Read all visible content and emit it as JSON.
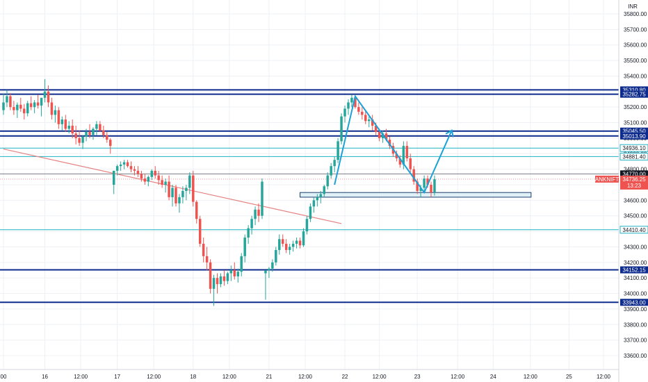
{
  "currency": "INR",
  "colors": {
    "up": "#26a69a",
    "down": "#ef5350",
    "navy": "#0d2b8c",
    "teal": "#1fb2c4",
    "trend_red": "#e58080",
    "arrow": "#1ba1d6",
    "grid": "#eef0f4"
  },
  "chart_data": {
    "type": "candlestick",
    "symbol": "BANKNIFTY",
    "y_axis": {
      "min": 33500,
      "max": 35900,
      "ticks": [
        33600,
        33700,
        33800,
        33900,
        34000,
        34100,
        34200,
        34300,
        34400,
        34500,
        34600,
        34700,
        34800,
        34900,
        35000,
        35100,
        35200,
        35300,
        35400,
        35500,
        35600,
        35700,
        35800
      ],
      "tick_labels": [
        "33600.00",
        "33700.00",
        "33800.00",
        "33900.00",
        "34000.00",
        "34100.00",
        "34200.00",
        "34300.00",
        "34400.00",
        "34500.00",
        "34600.00",
        "34700.00",
        "34800.00",
        "34900.00",
        "35000.00",
        "35100.00",
        "35200.00",
        "35300.00",
        "35400.00",
        "35500.00",
        "35600.00",
        "35700.00",
        "35800.00"
      ]
    },
    "x_axis": {
      "min": 0,
      "max": 175,
      "ticks": [
        0,
        12,
        22.4,
        33,
        43.6,
        55,
        65.5,
        77,
        87.5,
        99,
        109,
        120,
        131.7,
        142,
        152.8,
        164,
        174
      ],
      "tick_labels": [
        "00",
        "16",
        "12:00",
        "17",
        "12:00",
        "18",
        "12:00",
        "21",
        "12:00",
        "22",
        "12:00",
        "23",
        "12:00",
        "24",
        "12:00",
        "25",
        "12:00"
      ]
    },
    "candles": [
      [
        35180,
        35285,
        35150,
        35230
      ],
      [
        35230,
        35310,
        35200,
        35270
      ],
      [
        35270,
        35290,
        35180,
        35200
      ],
      [
        35200,
        35240,
        35150,
        35180
      ],
      [
        35180,
        35230,
        35130,
        35215
      ],
      [
        35215,
        35260,
        35170,
        35190
      ],
      [
        35190,
        35220,
        35120,
        35160
      ],
      [
        35160,
        35240,
        35140,
        35225
      ],
      [
        35225,
        35270,
        35180,
        35200
      ],
      [
        35200,
        35245,
        35160,
        35230
      ],
      [
        35230,
        35280,
        35190,
        35210
      ],
      [
        35210,
        35250,
        35140,
        35260
      ],
      [
        35260,
        35380,
        35230,
        35300
      ],
      [
        35300,
        35340,
        35200,
        35230
      ],
      [
        35230,
        35260,
        35120,
        35150
      ],
      [
        35150,
        35210,
        35100,
        35180
      ],
      [
        35180,
        35200,
        35060,
        35090
      ],
      [
        35090,
        35140,
        35050,
        35120
      ],
      [
        35120,
        35150,
        35040,
        35060
      ],
      [
        35060,
        35110,
        35030,
        35080
      ],
      [
        35080,
        35120,
        35000,
        35030
      ],
      [
        35030,
        35080,
        34960,
        35000
      ],
      [
        35000,
        35050,
        34950,
        34970
      ],
      [
        34970,
        35020,
        34930,
        35010
      ],
      [
        35010,
        35060,
        34980,
        35040
      ],
      [
        35040,
        35090,
        35000,
        35020
      ],
      [
        35020,
        35070,
        34990,
        35060
      ],
      [
        35060,
        35110,
        35020,
        35090
      ],
      [
        35090,
        35110,
        35040,
        35050
      ],
      [
        35050,
        35080,
        35000,
        35020
      ],
      [
        35020,
        35040,
        34970,
        34990
      ],
      [
        34990,
        35000,
        34900,
        34950
      ],
      [
        34700,
        34790,
        34640,
        34790
      ],
      [
        34790,
        34830,
        34760,
        34820
      ],
      [
        34820,
        34850,
        34790,
        34830
      ],
      [
        34830,
        34860,
        34800,
        34845
      ],
      [
        34845,
        34860,
        34810,
        34820
      ],
      [
        34820,
        34850,
        34780,
        34800
      ],
      [
        34800,
        34820,
        34760,
        34790
      ],
      [
        34790,
        34820,
        34750,
        34770
      ],
      [
        34770,
        34790,
        34720,
        34740
      ],
      [
        34740,
        34770,
        34700,
        34720
      ],
      [
        34720,
        34760,
        34690,
        34750
      ],
      [
        34750,
        34800,
        34730,
        34790
      ],
      [
        34790,
        34820,
        34740,
        34760
      ],
      [
        34760,
        34790,
        34700,
        34730
      ],
      [
        34730,
        34760,
        34680,
        34700
      ],
      [
        34700,
        34740,
        34650,
        34720
      ],
      [
        34720,
        34760,
        34600,
        34620
      ],
      [
        34620,
        34700,
        34560,
        34680
      ],
      [
        34680,
        34700,
        34560,
        34580
      ],
      [
        34580,
        34640,
        34520,
        34620
      ],
      [
        34620,
        34690,
        34580,
        34660
      ],
      [
        34660,
        34700,
        34600,
        34680
      ],
      [
        34680,
        34780,
        34640,
        34760
      ],
      [
        34760,
        34790,
        34560,
        34590
      ],
      [
        34590,
        34600,
        34450,
        34480
      ],
      [
        34480,
        34500,
        34300,
        34320
      ],
      [
        34320,
        34360,
        34200,
        34240
      ],
      [
        34240,
        34300,
        34150,
        34200
      ],
      [
        34200,
        34220,
        34000,
        34030
      ],
      [
        34030,
        34120,
        33920,
        34100
      ],
      [
        34100,
        34130,
        34000,
        34060
      ],
      [
        34060,
        34130,
        34040,
        34110
      ],
      [
        34110,
        34150,
        34050,
        34080
      ],
      [
        34080,
        34140,
        34060,
        34130
      ],
      [
        34130,
        34180,
        34080,
        34150
      ],
      [
        34150,
        34200,
        34090,
        34110
      ],
      [
        34110,
        34160,
        34070,
        34140
      ],
      [
        34140,
        34260,
        34110,
        34240
      ],
      [
        34240,
        34380,
        34200,
        34360
      ],
      [
        34360,
        34440,
        34320,
        34420
      ],
      [
        34420,
        34500,
        34380,
        34480
      ],
      [
        34480,
        34560,
        34440,
        34540
      ],
      [
        34540,
        34580,
        34460,
        34500
      ],
      [
        34500,
        34740,
        34480,
        34720
      ],
      [
        34130,
        34150,
        33960,
        34150
      ],
      [
        34150,
        34170,
        34100,
        34160
      ],
      [
        34160,
        34220,
        34140,
        34200
      ],
      [
        34200,
        34300,
        34180,
        34280
      ],
      [
        34280,
        34380,
        34250,
        34350
      ],
      [
        34350,
        34380,
        34300,
        34320
      ],
      [
        34320,
        34350,
        34260,
        34280
      ],
      [
        34280,
        34320,
        34250,
        34300
      ],
      [
        34300,
        34340,
        34270,
        34320
      ],
      [
        34320,
        34360,
        34290,
        34340
      ],
      [
        34340,
        34360,
        34290,
        34310
      ],
      [
        34310,
        34420,
        34300,
        34400
      ],
      [
        34400,
        34500,
        34380,
        34480
      ],
      [
        34480,
        34580,
        34460,
        34560
      ],
      [
        34560,
        34620,
        34520,
        34600
      ],
      [
        34600,
        34640,
        34560,
        34620
      ],
      [
        34620,
        34660,
        34580,
        34640
      ],
      [
        34640,
        34700,
        34620,
        34690
      ],
      [
        34690,
        34780,
        34670,
        34760
      ],
      [
        34760,
        34840,
        34740,
        34820
      ],
      [
        34820,
        34880,
        34780,
        34860
      ],
      [
        34860,
        35000,
        34840,
        34980
      ],
      [
        34980,
        35160,
        34960,
        35140
      ],
      [
        35140,
        35210,
        35100,
        35190
      ],
      [
        35190,
        35250,
        35150,
        35230
      ],
      [
        35230,
        35280,
        35200,
        35260
      ],
      [
        35260,
        35270,
        35190,
        35200
      ],
      [
        35200,
        35230,
        35150,
        35170
      ],
      [
        35170,
        35200,
        35120,
        35150
      ],
      [
        35150,
        35180,
        35090,
        35110
      ],
      [
        35110,
        35140,
        35070,
        35120
      ],
      [
        35120,
        35150,
        35050,
        35080
      ],
      [
        35080,
        35100,
        35020,
        35040
      ],
      [
        35040,
        35060,
        34980,
        35000
      ],
      [
        35000,
        35050,
        34970,
        35030
      ],
      [
        35030,
        35060,
        34980,
        34990
      ],
      [
        34990,
        35010,
        34930,
        34950
      ],
      [
        34950,
        34970,
        34880,
        34900
      ],
      [
        34900,
        34920,
        34850,
        34870
      ],
      [
        34870,
        34890,
        34810,
        34830
      ],
      [
        34830,
        34980,
        34800,
        34950
      ],
      [
        34950,
        34980,
        34850,
        34870
      ],
      [
        34870,
        34900,
        34780,
        34800
      ],
      [
        34800,
        34820,
        34700,
        34720
      ],
      [
        34720,
        34740,
        34640,
        34660
      ],
      [
        34660,
        34700,
        34620,
        34680
      ],
      [
        34680,
        34760,
        34660,
        34740
      ],
      [
        34740,
        34760,
        34680,
        34700
      ],
      [
        34700,
        34720,
        34620,
        34650
      ],
      [
        34650,
        34760,
        34630,
        34736
      ]
    ],
    "levels": [
      {
        "price": 35310.8,
        "label": "35310.80",
        "kind": "navy"
      },
      {
        "price": 35282.75,
        "label": "35282.75",
        "kind": "navy"
      },
      {
        "price": 35045.5,
        "label": "35045.50",
        "kind": "navy"
      },
      {
        "price": 35013.9,
        "label": "35013.90",
        "kind": "navy"
      },
      {
        "price": 34936.1,
        "label": "34936.10",
        "kind": "teal"
      },
      {
        "price": 34881.4,
        "label": "34881.40",
        "kind": "teal"
      },
      {
        "price": 34770.0,
        "label": "34770.00",
        "kind": "black"
      },
      {
        "price": 34410.4,
        "label": "34410.40",
        "kind": "teal"
      },
      {
        "price": 34152.15,
        "label": "34152.15",
        "kind": "navy"
      },
      {
        "price": 33943.0,
        "label": "33943.00",
        "kind": "navy"
      }
    ],
    "current": {
      "symbol": "BANKNIFTY",
      "price_label": "34736.25",
      "price": 34736.25,
      "countdown": "13:23"
    },
    "trendline": {
      "x1": 0,
      "y1": 34930,
      "x2": 98,
      "y2": 34450
    },
    "zone": {
      "x1": 86,
      "x2": 153,
      "ylo": 34620,
      "yhi": 34650
    },
    "path": [
      [
        96,
        34700
      ],
      [
        102,
        35270
      ],
      [
        122,
        34650
      ],
      [
        130,
        35050
      ]
    ]
  }
}
